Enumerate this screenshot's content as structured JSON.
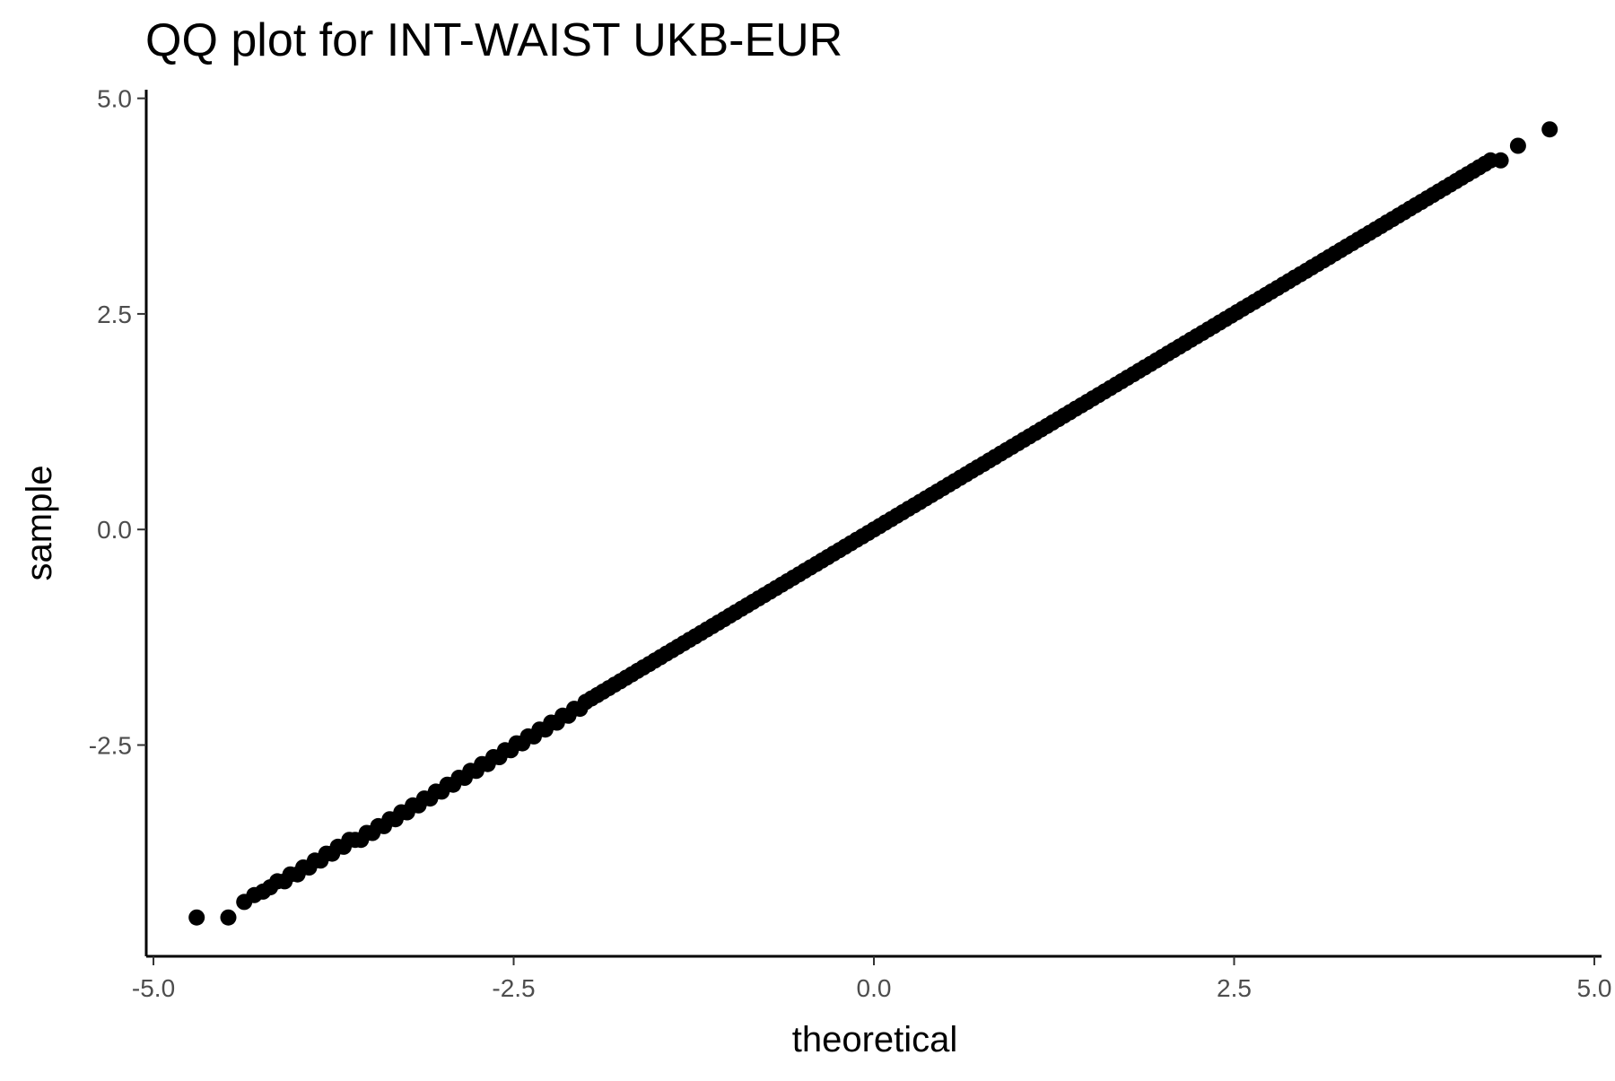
{
  "chart_data": {
    "type": "scatter",
    "title": "QQ plot for INT-WAIST UKB-EUR",
    "xlabel": "theoretical",
    "ylabel": "sample",
    "xlim": [
      -5.05,
      5.05
    ],
    "ylim": [
      -4.95,
      5.1
    ],
    "x_ticks": [
      -5.0,
      -2.5,
      0.0,
      2.5,
      5.0
    ],
    "y_ticks": [
      -2.5,
      0.0,
      2.5,
      5.0
    ],
    "x_tick_labels": [
      "-5.0",
      "-2.5",
      "0.0",
      "2.5",
      "5.0"
    ],
    "y_tick_labels": [
      "-2.5",
      "0.0",
      "2.5",
      "5.0"
    ],
    "grid": false,
    "legend": "none",
    "point_color": "#000000",
    "series": [
      {
        "x": [
          -4.7,
          -4.48,
          -4.37,
          -4.3,
          -4.24,
          -4.19,
          -4.14,
          -4.09,
          -4.05,
          -4.0,
          -3.96,
          -3.92,
          -3.88,
          -3.84,
          -3.8,
          -3.76,
          -3.72,
          -3.68,
          -3.64,
          -3.6,
          -3.56,
          -3.52,
          -3.48,
          -3.44,
          -3.4,
          -3.36,
          -3.32,
          -3.28,
          -3.24,
          -3.2,
          -3.16,
          -3.12,
          -3.08,
          -3.04,
          -3.0,
          -2.96,
          -2.92,
          -2.88,
          -2.84,
          -2.8,
          -2.76,
          -2.72,
          -2.68,
          -2.64,
          -2.6,
          -2.56,
          -2.52,
          -2.48,
          -2.44,
          -2.4,
          -2.36,
          -2.32,
          -2.28,
          -2.24,
          -2.2,
          -2.16,
          -2.12,
          -2.08,
          -2.04,
          -2.0,
          -1.96,
          -1.92,
          -1.88,
          -1.84,
          -1.8,
          -1.76,
          -1.72,
          -1.68,
          -1.64,
          -1.6,
          -1.56,
          -1.52,
          -1.48,
          -1.44,
          -1.4,
          -1.36,
          -1.32,
          -1.28,
          -1.24,
          -1.2,
          -1.16,
          -1.12,
          -1.08,
          -1.04,
          -1.0,
          -0.96,
          -0.92,
          -0.88,
          -0.84,
          -0.8,
          -0.76,
          -0.72,
          -0.68,
          -0.64,
          -0.6,
          -0.56,
          -0.52,
          -0.48,
          -0.44,
          -0.4,
          -0.36,
          -0.32,
          -0.28,
          -0.24,
          -0.2,
          -0.16,
          -0.12,
          -0.08,
          -0.04,
          0.0,
          0.04,
          0.08,
          0.12,
          0.16,
          0.2,
          0.24,
          0.28,
          0.32,
          0.36,
          0.4,
          0.44,
          0.48,
          0.52,
          0.56,
          0.6,
          0.64,
          0.68,
          0.72,
          0.76,
          0.8,
          0.84,
          0.88,
          0.92,
          0.96,
          1.0,
          1.04,
          1.08,
          1.12,
          1.16,
          1.2,
          1.24,
          1.28,
          1.32,
          1.36,
          1.4,
          1.44,
          1.48,
          1.52,
          1.56,
          1.6,
          1.64,
          1.68,
          1.72,
          1.76,
          1.8,
          1.84,
          1.88,
          1.92,
          1.96,
          2.0,
          2.04,
          2.08,
          2.12,
          2.16,
          2.2,
          2.24,
          2.28,
          2.32,
          2.36,
          2.4,
          2.44,
          2.48,
          2.52,
          2.56,
          2.6,
          2.64,
          2.68,
          2.72,
          2.76,
          2.8,
          2.84,
          2.88,
          2.92,
          2.96,
          3.0,
          3.04,
          3.08,
          3.12,
          3.16,
          3.2,
          3.24,
          3.28,
          3.32,
          3.36,
          3.4,
          3.44,
          3.48,
          3.52,
          3.56,
          3.6,
          3.64,
          3.68,
          3.72,
          3.76,
          3.8,
          3.84,
          3.88,
          3.92,
          3.96,
          4.0,
          4.04,
          4.08,
          4.12,
          4.16,
          4.2,
          4.24,
          4.28,
          4.35,
          4.47,
          4.69
        ],
        "y": [
          -4.5,
          -4.5,
          -4.32,
          -4.24,
          -4.2,
          -4.15,
          -4.08,
          -4.08,
          -4.0,
          -4.0,
          -3.92,
          -3.92,
          -3.84,
          -3.84,
          -3.76,
          -3.76,
          -3.68,
          -3.68,
          -3.6,
          -3.6,
          -3.6,
          -3.52,
          -3.52,
          -3.44,
          -3.44,
          -3.36,
          -3.36,
          -3.28,
          -3.28,
          -3.2,
          -3.2,
          -3.12,
          -3.12,
          -3.04,
          -3.04,
          -2.96,
          -2.96,
          -2.88,
          -2.88,
          -2.8,
          -2.8,
          -2.72,
          -2.72,
          -2.64,
          -2.64,
          -2.56,
          -2.56,
          -2.48,
          -2.48,
          -2.4,
          -2.4,
          -2.32,
          -2.32,
          -2.24,
          -2.24,
          -2.16,
          -2.16,
          -2.08,
          -2.08,
          -2.0,
          -1.96,
          -1.92,
          -1.88,
          -1.84,
          -1.8,
          -1.76,
          -1.72,
          -1.68,
          -1.64,
          -1.6,
          -1.56,
          -1.52,
          -1.48,
          -1.44,
          -1.4,
          -1.36,
          -1.32,
          -1.28,
          -1.24,
          -1.2,
          -1.16,
          -1.12,
          -1.08,
          -1.04,
          -1.0,
          -0.96,
          -0.92,
          -0.88,
          -0.84,
          -0.8,
          -0.76,
          -0.72,
          -0.68,
          -0.64,
          -0.6,
          -0.56,
          -0.52,
          -0.48,
          -0.44,
          -0.4,
          -0.36,
          -0.32,
          -0.28,
          -0.24,
          -0.2,
          -0.16,
          -0.12,
          -0.08,
          -0.04,
          0.0,
          0.04,
          0.08,
          0.12,
          0.16,
          0.2,
          0.24,
          0.28,
          0.32,
          0.36,
          0.4,
          0.44,
          0.48,
          0.52,
          0.56,
          0.6,
          0.64,
          0.68,
          0.72,
          0.76,
          0.8,
          0.84,
          0.88,
          0.92,
          0.96,
          1.0,
          1.04,
          1.08,
          1.12,
          1.16,
          1.2,
          1.24,
          1.28,
          1.32,
          1.36,
          1.4,
          1.44,
          1.48,
          1.52,
          1.56,
          1.6,
          1.64,
          1.68,
          1.72,
          1.76,
          1.8,
          1.84,
          1.88,
          1.92,
          1.96,
          2.0,
          2.04,
          2.08,
          2.12,
          2.16,
          2.2,
          2.24,
          2.28,
          2.32,
          2.36,
          2.4,
          2.44,
          2.48,
          2.52,
          2.56,
          2.6,
          2.64,
          2.68,
          2.72,
          2.76,
          2.8,
          2.84,
          2.88,
          2.92,
          2.96,
          3.0,
          3.04,
          3.08,
          3.12,
          3.16,
          3.2,
          3.24,
          3.28,
          3.32,
          3.36,
          3.4,
          3.44,
          3.48,
          3.52,
          3.56,
          3.6,
          3.64,
          3.68,
          3.72,
          3.76,
          3.8,
          3.84,
          3.88,
          3.92,
          3.96,
          4.0,
          4.04,
          4.08,
          4.12,
          4.16,
          4.2,
          4.24,
          4.28,
          4.28,
          4.45,
          4.64
        ]
      }
    ]
  }
}
